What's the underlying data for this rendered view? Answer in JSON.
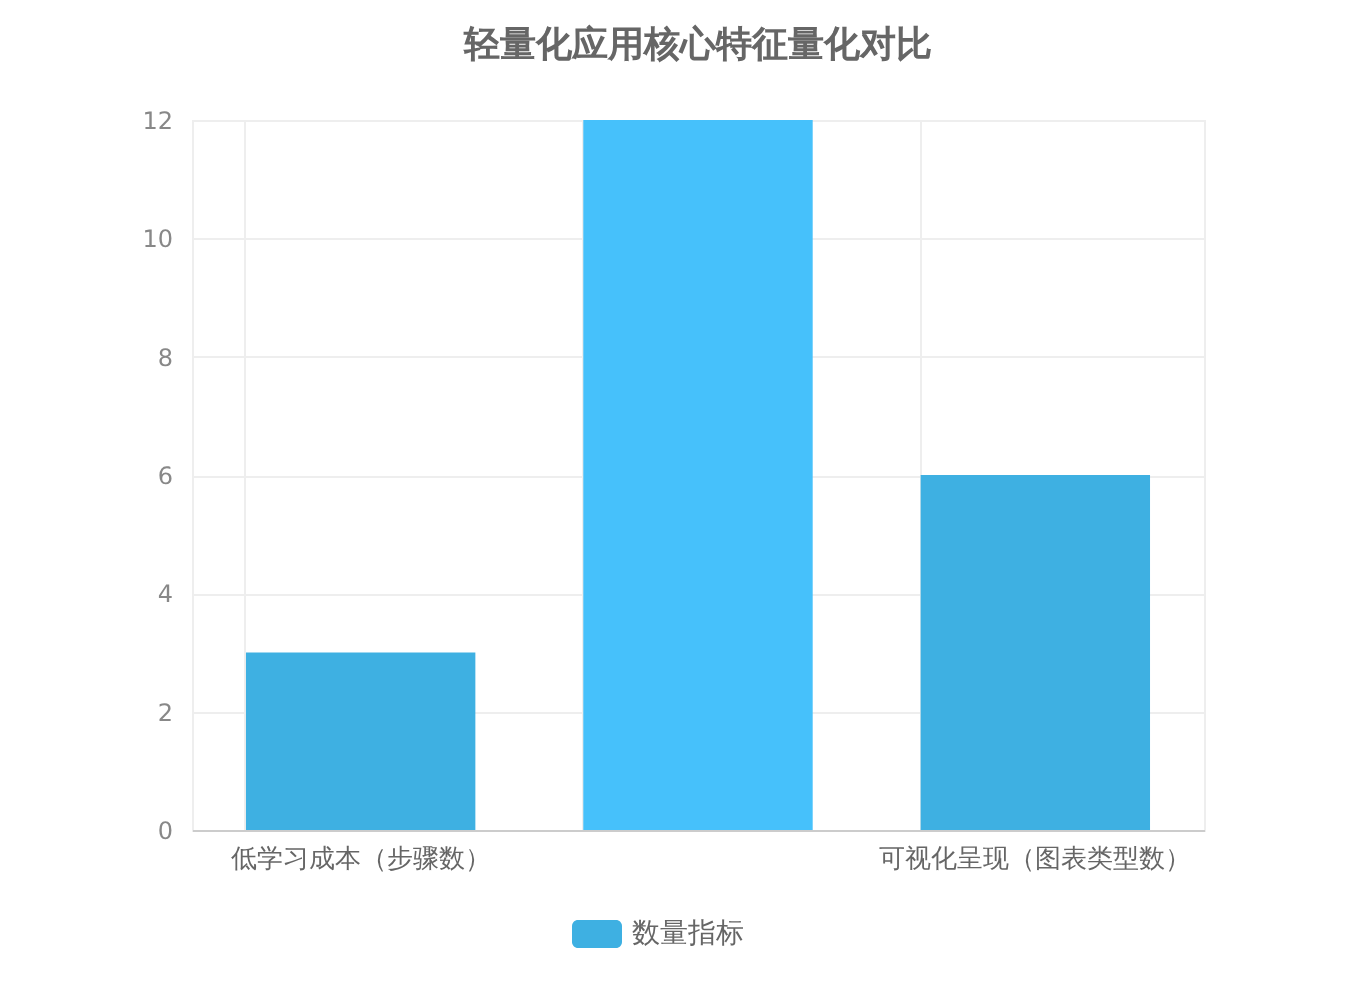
{
  "chart_data": {
    "type": "bar",
    "title": "轻量化应用核心特征量化对比",
    "categories": [
      "低学习成本（步骤数）",
      null,
      "可视化呈现（图表类型数）"
    ],
    "series": [
      {
        "name": "数量指标",
        "color": "#3eb0e2",
        "colors": [
          "#3eb0e2",
          "#46c1fb",
          "#3eb0e2"
        ],
        "values": [
          3,
          12,
          6
        ]
      }
    ],
    "ylim": [
      0,
      12
    ],
    "yticks": [
      0,
      2,
      4,
      6,
      8,
      10,
      12
    ],
    "grid": true,
    "legend": "bottom"
  }
}
